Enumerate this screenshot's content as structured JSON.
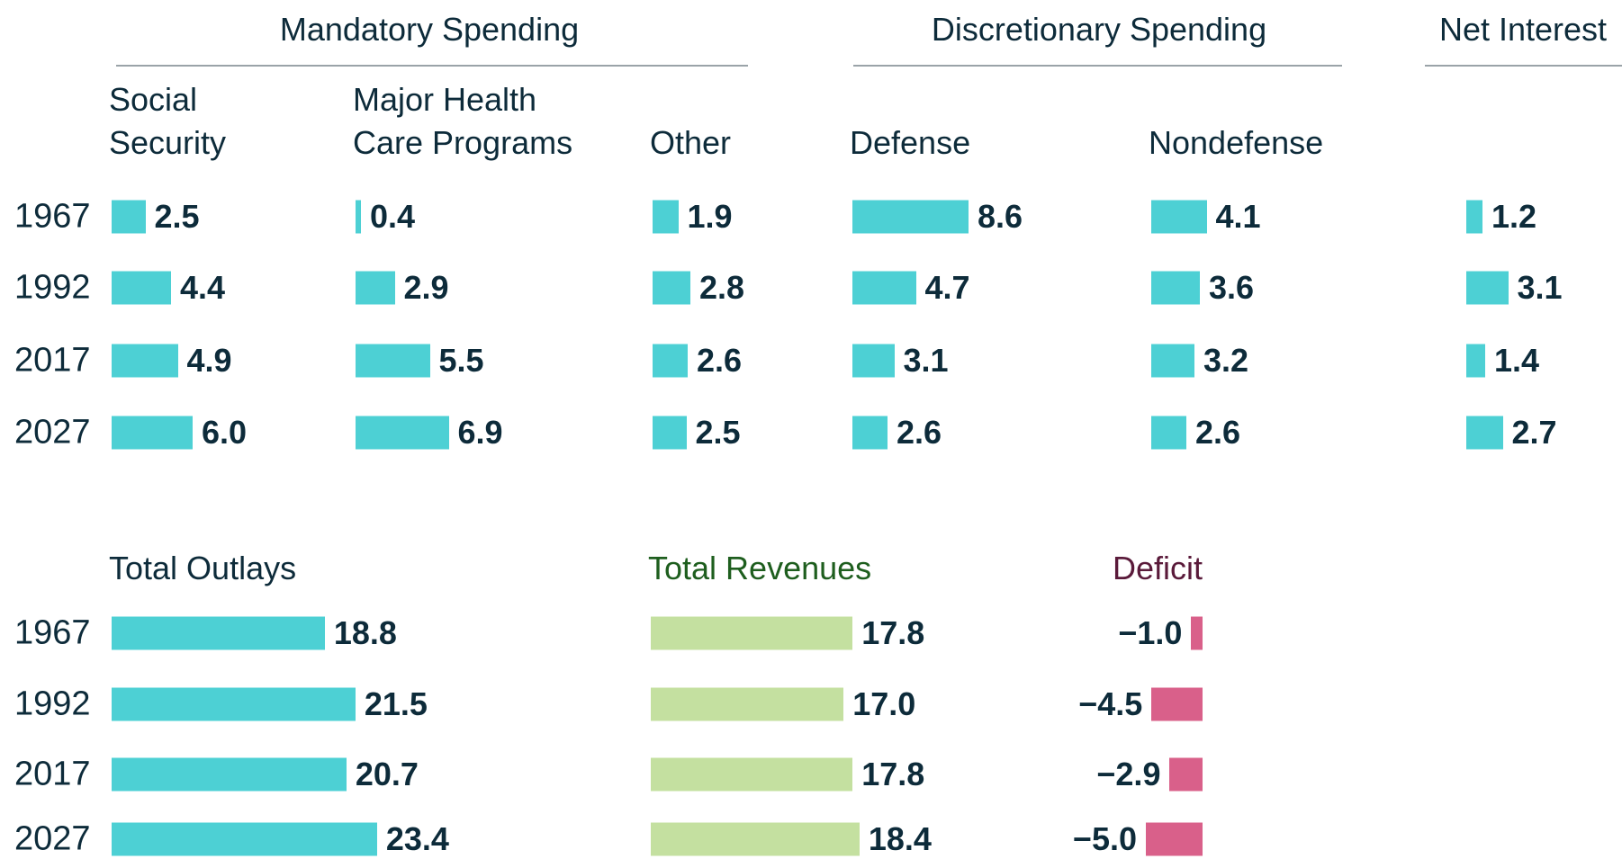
{
  "groups": [
    {
      "title": "Mandatory Spending"
    },
    {
      "title": "Discretionary Spending"
    },
    {
      "title": "Net Interest"
    }
  ],
  "chart_data": [
    {
      "type": "bar",
      "title": "Social Security",
      "categories": [
        "1967",
        "1992",
        "2017",
        "2027"
      ],
      "values": [
        2.5,
        4.4,
        4.9,
        6.0
      ],
      "value_labels": [
        "2.5",
        "4.4",
        "4.9",
        "6.0"
      ],
      "color": "#4dd0d4"
    },
    {
      "type": "bar",
      "title": "Major Health Care Programs",
      "values": [
        0.4,
        2.9,
        5.5,
        6.9
      ],
      "value_labels": [
        "0.4",
        "2.9",
        "5.5",
        "6.9"
      ],
      "color": "#4dd0d4"
    },
    {
      "type": "bar",
      "title": "Other",
      "values": [
        1.9,
        2.8,
        2.6,
        2.5
      ],
      "value_labels": [
        "1.9",
        "2.8",
        "2.6",
        "2.5"
      ],
      "color": "#4dd0d4"
    },
    {
      "type": "bar",
      "title": "Defense",
      "values": [
        8.6,
        4.7,
        3.1,
        2.6
      ],
      "value_labels": [
        "8.6",
        "4.7",
        "3.1",
        "2.6"
      ],
      "color": "#4dd0d4"
    },
    {
      "type": "bar",
      "title": "Nondefense",
      "values": [
        4.1,
        3.6,
        3.2,
        2.6
      ],
      "value_labels": [
        "4.1",
        "3.6",
        "3.2",
        "2.6"
      ],
      "color": "#4dd0d4"
    },
    {
      "type": "bar",
      "values": [
        1.2,
        3.1,
        1.4,
        2.7
      ],
      "value_labels": [
        "1.2",
        "3.1",
        "1.4",
        "2.7"
      ],
      "color": "#4dd0d4"
    },
    {
      "type": "bar",
      "title": "Total Outlays",
      "categories": [
        "1967",
        "1992",
        "2017",
        "2027"
      ],
      "values": [
        18.8,
        21.5,
        20.7,
        23.4
      ],
      "value_labels": [
        "18.8",
        "21.5",
        "20.7",
        "23.4"
      ],
      "color": "#4dd0d4"
    },
    {
      "type": "bar",
      "title": "Total Revenues",
      "values": [
        17.8,
        17.0,
        17.8,
        18.4
      ],
      "value_labels": [
        "17.8",
        "17.0",
        "17.8",
        "18.4"
      ],
      "color": "#c4e0a0",
      "title_color": "#1e5e1e"
    },
    {
      "type": "bar",
      "title": "Deficit",
      "values": [
        -1.0,
        -4.5,
        -2.9,
        -5.0
      ],
      "value_labels": [
        "−1.0",
        "−4.5",
        "−2.9",
        "−5.0"
      ],
      "color": "#d9608a",
      "title_color": "#5a1a3a"
    }
  ]
}
